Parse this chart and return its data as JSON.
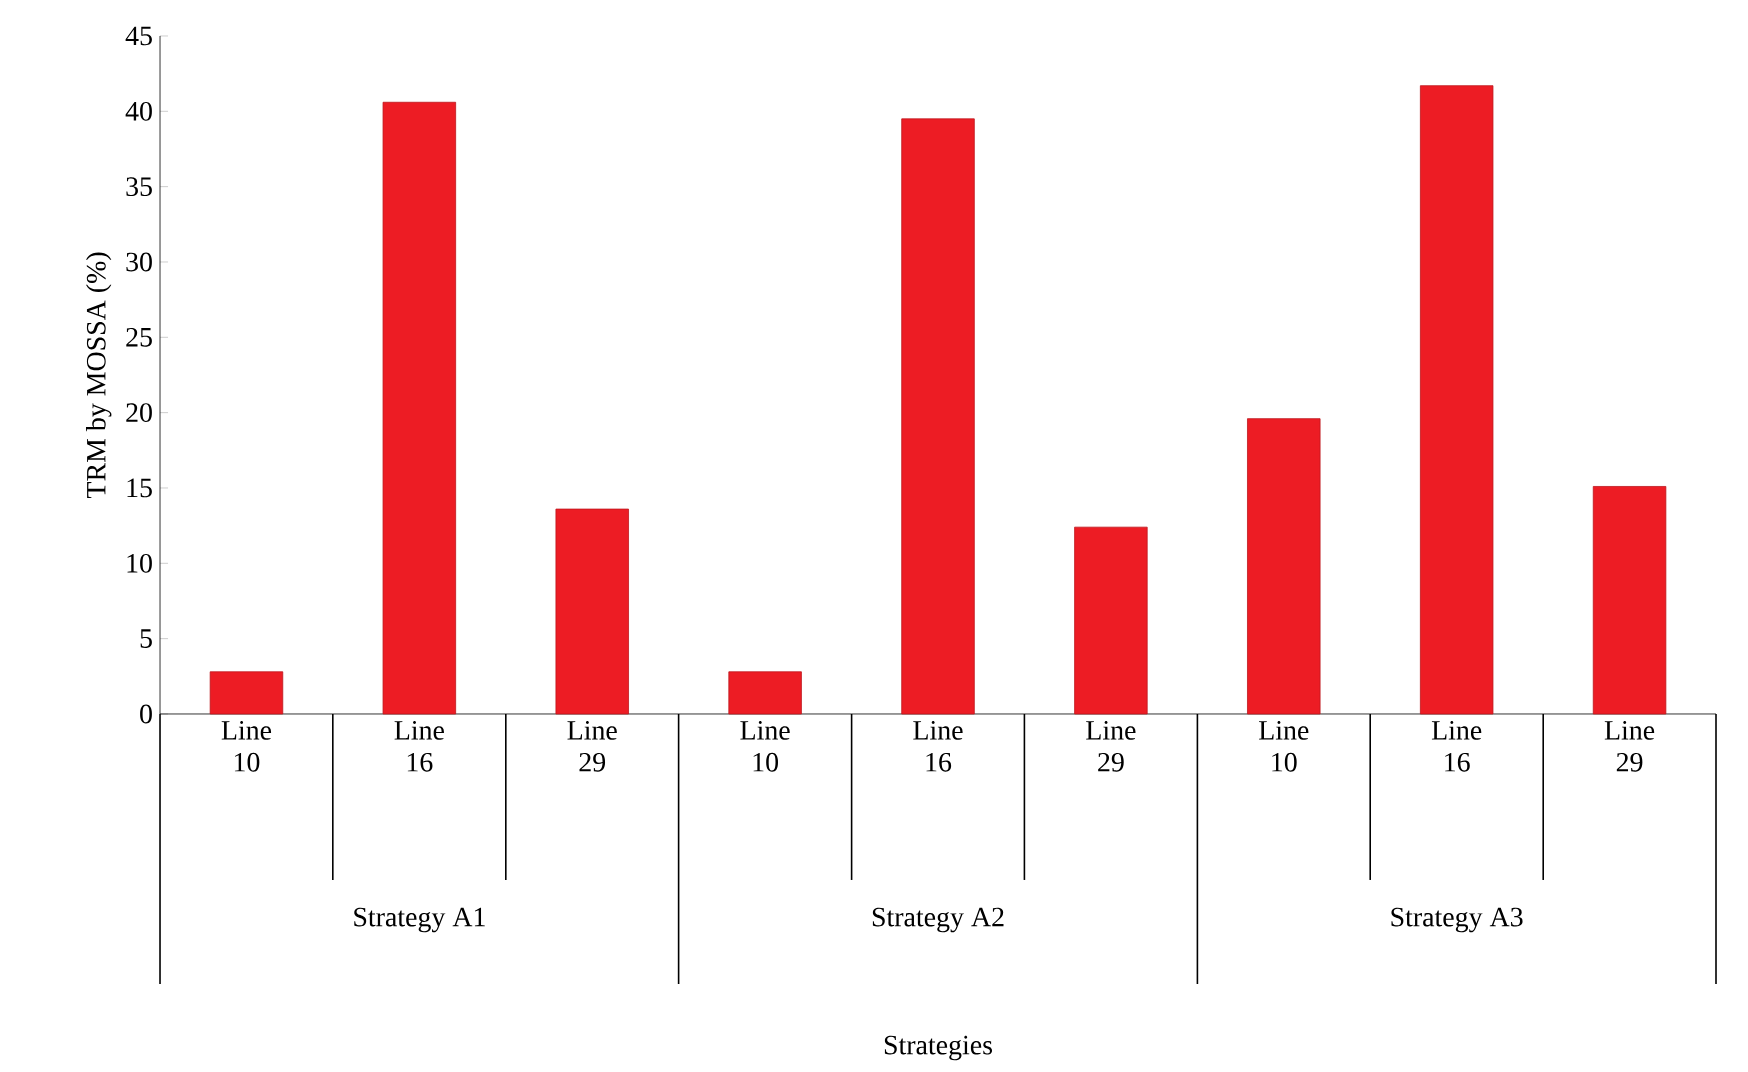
{
  "chart_data": {
    "type": "bar",
    "ylabel": "TRM by MOSSA (%)",
    "categories": [
      "Line 10",
      "Line 16",
      "Line 29",
      "Line 10",
      "Line 16",
      "Line 29",
      "Line 10",
      "Line 16",
      "Line 29"
    ],
    "values": [
      2.8,
      40.6,
      13.6,
      2.8,
      39.5,
      12.4,
      19.6,
      41.7,
      15.1
    ],
    "color": "#ed1c24",
    "ylim": [
      0,
      45
    ],
    "yticks": [
      0,
      5,
      10,
      15,
      20,
      25,
      30,
      35,
      40,
      45
    ],
    "annotations": [
      "Strategy A1",
      "Strategy A2",
      "Strategy A3",
      "Strategies"
    ]
  }
}
